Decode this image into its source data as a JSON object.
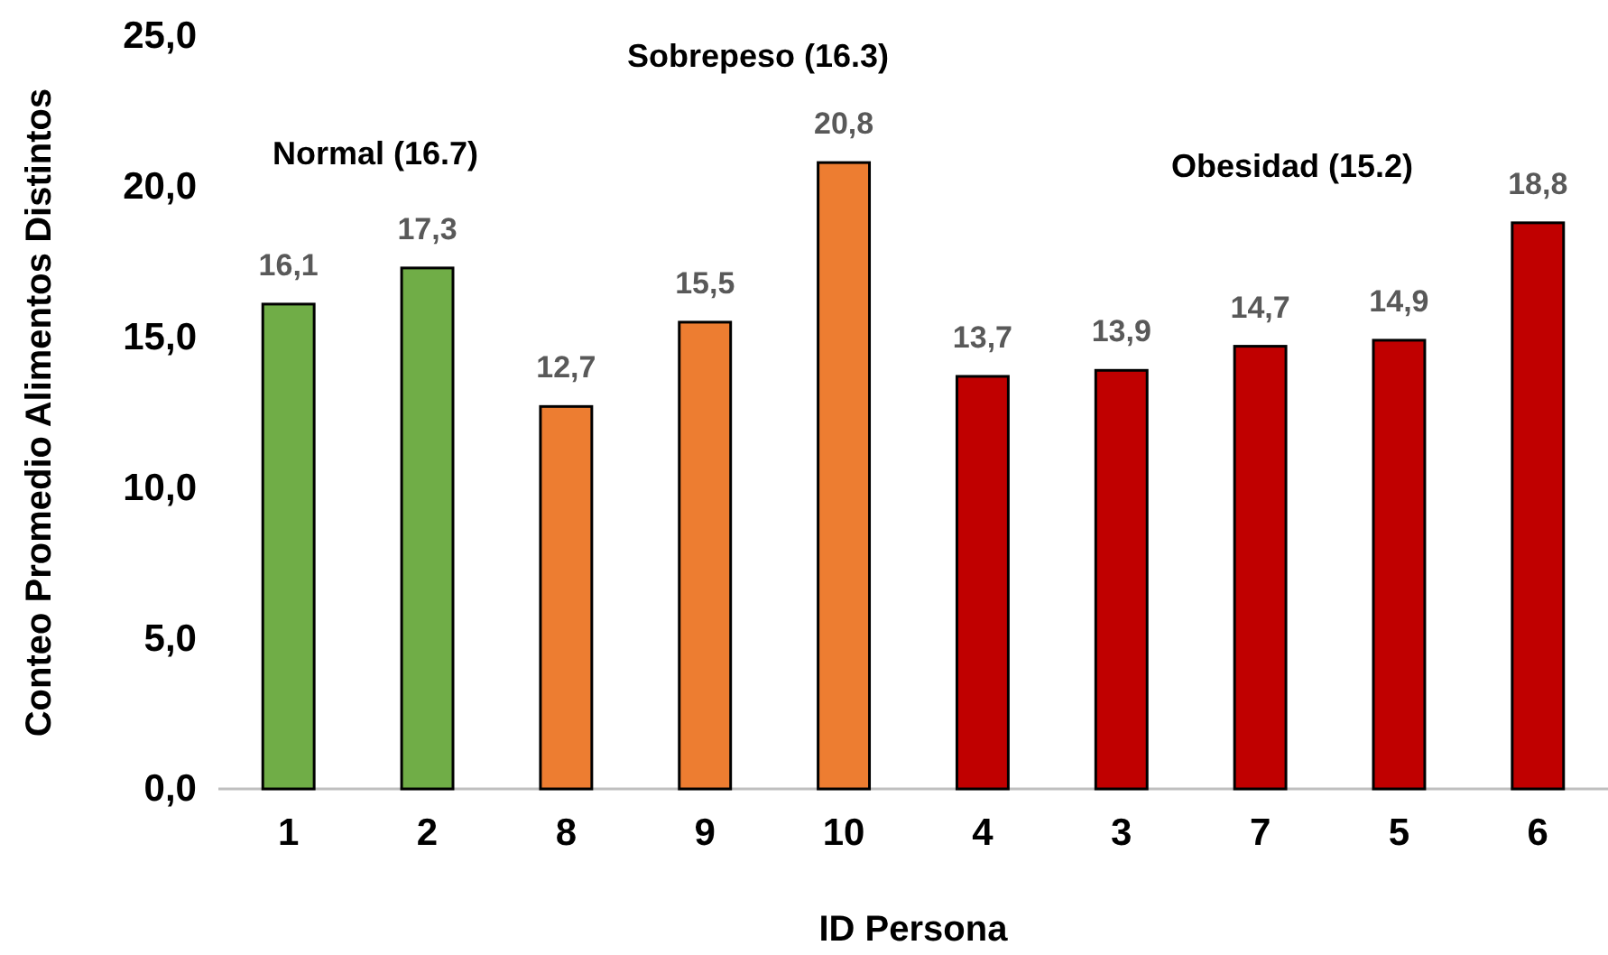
{
  "chart_data": {
    "type": "bar",
    "xlabel": "ID Persona",
    "ylabel": "Conteo Promedio Alimentos Distintos",
    "categories": [
      "1",
      "2",
      "8",
      "9",
      "10",
      "4",
      "3",
      "7",
      "5",
      "6"
    ],
    "values": [
      16.1,
      17.3,
      12.7,
      15.5,
      20.8,
      13.7,
      13.9,
      14.7,
      14.9,
      18.8
    ],
    "colors": [
      "#70ad47",
      "#70ad47",
      "#ed7d31",
      "#ed7d31",
      "#ed7d31",
      "#c00000",
      "#c00000",
      "#c00000",
      "#c00000",
      "#c00000"
    ],
    "value_labels": [
      "16,1",
      "17,3",
      "12,7",
      "15,5",
      "20,8",
      "13,7",
      "13,9",
      "14,7",
      "14,9",
      "18,8"
    ],
    "ylim": [
      0,
      25
    ],
    "yticks": [
      {
        "value": 0,
        "label": "0,0"
      },
      {
        "value": 5,
        "label": "5,0"
      },
      {
        "value": 10,
        "label": "10,0"
      },
      {
        "value": 15,
        "label": "15,0"
      },
      {
        "value": 20,
        "label": "20,0"
      },
      {
        "value": 25,
        "label": "25,0"
      }
    ],
    "annotations": [
      "Normal (16.7)",
      "Sobrepeso (16.3)",
      "Obesidad (15.2)"
    ],
    "grid": false
  }
}
